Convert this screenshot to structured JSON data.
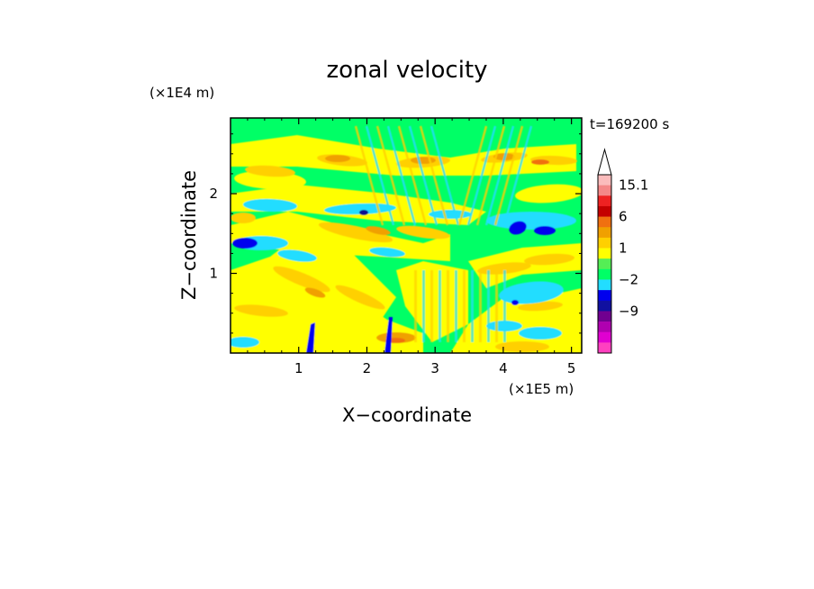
{
  "chart_data": {
    "type": "heatmap",
    "title": "zonal velocity",
    "time_label": "t=169200 s",
    "xlabel": "X−coordinate",
    "ylabel": "Z−coordinate",
    "x_unit": "(×1E5 m)",
    "y_unit": "(×1E4 m)",
    "xlim": [
      0,
      5.15
    ],
    "ylim": [
      0,
      2.95
    ],
    "x_ticks": [
      {
        "value": 1,
        "label": "1"
      },
      {
        "value": 2,
        "label": "2"
      },
      {
        "value": 3,
        "label": "3"
      },
      {
        "value": 4,
        "label": "4"
      },
      {
        "value": 5,
        "label": "5"
      }
    ],
    "y_ticks": [
      {
        "value": 1,
        "label": "1"
      },
      {
        "value": 2,
        "label": "2"
      }
    ],
    "colorbar": {
      "top_color": "#ffffff",
      "colors": [
        "#fbbcbc",
        "#f48888",
        "#ee2222",
        "#c40000",
        "#f07010",
        "#f0a000",
        "#ffd000",
        "#ffff00",
        "#55ee55",
        "#00ff66",
        "#22ddff",
        "#0000ee",
        "#1010a0",
        "#700090",
        "#b000b0",
        "#e000d0",
        "#ff40c0"
      ],
      "labels": [
        {
          "text": "15.1",
          "index": 1
        },
        {
          "text": "6",
          "index": 4
        },
        {
          "text": "1",
          "index": 7
        },
        {
          "text": "−2",
          "index": 10
        },
        {
          "text": "−9",
          "index": 13
        }
      ]
    },
    "field_colors": {
      "background": "#00ff66",
      "yellow": "#ffff00",
      "amber": "#ffd000",
      "orange": "#f0a000",
      "deep_orange": "#f07010",
      "cyan": "#22ddff",
      "blue": "#0000ee",
      "navy": "#101090"
    }
  }
}
